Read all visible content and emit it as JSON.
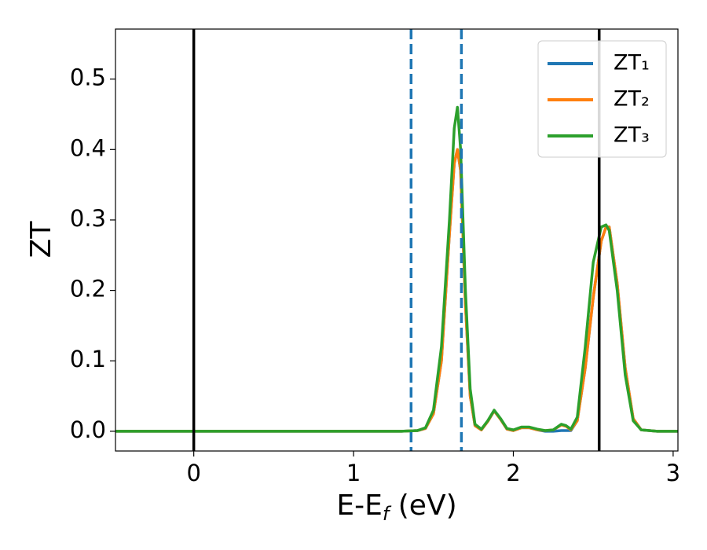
{
  "chart_data": {
    "type": "line",
    "xlabel": [
      "E-E",
      "f",
      " (eV)"
    ],
    "ylabel": "ZT",
    "x": [
      -0.5,
      0,
      0.5,
      1.0,
      1.3,
      1.4,
      1.45,
      1.5,
      1.55,
      1.6,
      1.63,
      1.65,
      1.67,
      1.7,
      1.73,
      1.76,
      1.8,
      1.84,
      1.88,
      1.92,
      1.96,
      2.0,
      2.05,
      2.1,
      2.15,
      2.2,
      2.25,
      2.3,
      2.33,
      2.36,
      2.4,
      2.45,
      2.5,
      2.55,
      2.58,
      2.6,
      2.65,
      2.7,
      2.75,
      2.8,
      2.9,
      3.03
    ],
    "series": [
      {
        "name": "ZT₁",
        "color": "#1f77b4",
        "values": [
          0,
          0,
          0,
          0,
          0,
          0.001,
          0.004,
          0.025,
          0.1,
          0.28,
          0.38,
          0.4,
          0.37,
          0.18,
          0.05,
          0.008,
          0.002,
          0.014,
          0.029,
          0.017,
          0.003,
          0.001,
          0.005,
          0.005,
          0.002,
          0,
          0,
          0.001,
          0.001,
          0.001,
          0.015,
          0.09,
          0.19,
          0.27,
          0.29,
          0.29,
          0.21,
          0.09,
          0.018,
          0.002,
          0,
          0
        ]
      },
      {
        "name": "ZT₂",
        "color": "#ff7f0e",
        "values": [
          0,
          0,
          0,
          0,
          0,
          0.001,
          0.004,
          0.025,
          0.1,
          0.28,
          0.38,
          0.4,
          0.37,
          0.18,
          0.05,
          0.008,
          0.002,
          0.014,
          0.029,
          0.017,
          0.003,
          0.001,
          0.005,
          0.005,
          0.002,
          0.001,
          0.002,
          0.009,
          0.007,
          0.002,
          0.015,
          0.09,
          0.19,
          0.27,
          0.29,
          0.29,
          0.21,
          0.09,
          0.018,
          0.002,
          0,
          0
        ]
      },
      {
        "name": "ZT₃",
        "color": "#2ca02c",
        "values": [
          0,
          0,
          0,
          0,
          0,
          0.001,
          0.005,
          0.03,
          0.12,
          0.3,
          0.43,
          0.46,
          0.4,
          0.2,
          0.06,
          0.01,
          0.003,
          0.015,
          0.03,
          0.018,
          0.004,
          0.002,
          0.006,
          0.006,
          0.003,
          0.001,
          0.002,
          0.01,
          0.008,
          0.003,
          0.02,
          0.12,
          0.24,
          0.29,
          0.293,
          0.285,
          0.2,
          0.08,
          0.015,
          0.002,
          0,
          0
        ]
      }
    ],
    "vlines": [
      {
        "x": 0,
        "color": "#000000",
        "style": "solid"
      },
      {
        "x": 2.537,
        "color": "#000000",
        "style": "solid"
      },
      {
        "x": 1.36,
        "color": "#1f77b4",
        "style": "dashed"
      },
      {
        "x": 1.675,
        "color": "#1f77b4",
        "style": "dashed"
      }
    ],
    "xlim": [
      -0.49,
      3.03
    ],
    "ylim": [
      -0.028,
      0.571
    ],
    "xticks": [
      0,
      1,
      2,
      3
    ],
    "yticks": [
      {
        "value": 0,
        "label": "0.0"
      },
      0.1,
      0.2,
      0.3,
      0.4,
      0.5
    ],
    "legend": "upper right"
  }
}
